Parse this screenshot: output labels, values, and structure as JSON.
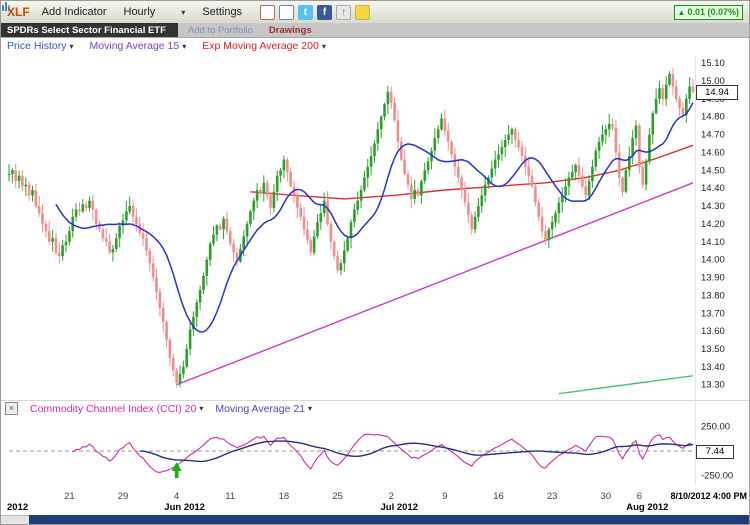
{
  "toolbar": {
    "symbol": "XLF",
    "add_indicator": "Add Indicator",
    "period": "Hourly",
    "settings": "Settings",
    "change": "0.01 (0.07%)"
  },
  "icons": {
    "caret": "▾",
    "up_arrow": "▲",
    "twitter_glyph": "t",
    "facebook_glyph": "f",
    "share_glyph": "↑",
    "close_glyph": "×"
  },
  "subbar": {
    "name": "SPDRs Select Sector Financial ETF",
    "add_to_portfolio": "Add to Portfolio",
    "drawings": "Drawings"
  },
  "legend": {
    "price_history": "Price History",
    "ma15": "Moving Average 15",
    "ema200": "Exp Moving Average 200"
  },
  "cci_header": {
    "cci": "Commodity Channel Index (CCI) 20",
    "ma": "Moving Average 21"
  },
  "price_tag": "14.94",
  "cci_value": "7.44",
  "timestamp": "8/10/2012 4:00 PM",
  "chart_data": {
    "type": "candlestick",
    "symbol": "XLF",
    "interval": "Hourly",
    "title": "SPDRs Select Sector Financial ETF - Hourly",
    "ylim": [
      13.22,
      15.14
    ],
    "price_ticks": [
      "15.10",
      "15.00",
      "14.90",
      "14.80",
      "14.70",
      "14.60",
      "14.50",
      "14.40",
      "14.30",
      "14.20",
      "14.10",
      "14.00",
      "13.90",
      "13.80",
      "13.70",
      "13.60",
      "13.50",
      "13.40",
      "13.30"
    ],
    "closes": [
      14.48,
      14.5,
      14.44,
      14.47,
      14.41,
      14.42,
      14.36,
      14.39,
      14.3,
      14.26,
      14.2,
      14.16,
      14.1,
      14.12,
      14.04,
      14.02,
      14.08,
      14.1,
      14.16,
      14.24,
      14.28,
      14.27,
      14.31,
      14.29,
      14.33,
      14.28,
      14.2,
      14.17,
      14.12,
      14.1,
      14.04,
      14.06,
      14.12,
      14.19,
      14.22,
      14.27,
      14.3,
      14.24,
      14.2,
      14.15,
      14.12,
      14.05,
      13.98,
      13.9,
      13.82,
      13.73,
      13.65,
      13.55,
      13.45,
      13.38,
      13.31,
      13.36,
      13.4,
      13.5,
      13.61,
      13.68,
      13.76,
      13.83,
      13.91,
      14.0,
      14.09,
      14.14,
      14.19,
      14.17,
      14.23,
      14.16,
      14.09,
      14.04,
      13.99,
      14.06,
      14.13,
      14.2,
      14.27,
      14.33,
      14.39,
      14.37,
      14.43,
      14.36,
      14.29,
      14.38,
      14.47,
      14.5,
      14.56,
      14.49,
      14.41,
      14.36,
      14.29,
      14.24,
      14.17,
      14.11,
      14.04,
      14.13,
      14.21,
      14.26,
      14.33,
      14.2,
      14.1,
      14.02,
      13.94,
      13.98,
      14.05,
      14.12,
      14.21,
      14.28,
      14.33,
      14.39,
      14.46,
      14.52,
      14.58,
      14.65,
      14.73,
      14.8,
      14.87,
      14.94,
      14.88,
      14.78,
      14.66,
      14.56,
      14.48,
      14.42,
      14.34,
      14.39,
      14.36,
      14.44,
      14.5,
      14.55,
      14.61,
      14.68,
      14.73,
      14.79,
      14.72,
      14.66,
      14.59,
      14.52,
      14.46,
      14.39,
      14.32,
      14.25,
      14.17,
      14.24,
      14.3,
      14.36,
      14.42,
      14.46,
      14.51,
      14.56,
      14.59,
      14.63,
      14.67,
      14.7,
      14.73,
      14.67,
      14.63,
      14.58,
      14.52,
      14.47,
      14.41,
      14.32,
      14.24,
      14.16,
      14.11,
      14.17,
      14.21,
      14.26,
      14.32,
      14.36,
      14.41,
      14.46,
      14.49,
      14.53,
      14.47,
      14.41,
      14.36,
      14.44,
      14.52,
      14.61,
      14.66,
      14.7,
      14.73,
      14.76,
      14.74,
      14.6,
      14.46,
      14.38,
      14.5,
      14.58,
      14.68,
      14.75,
      14.52,
      14.42,
      14.55,
      14.7,
      14.82,
      14.9,
      14.96,
      14.9,
      14.98,
      15.04,
      14.97,
      14.9,
      14.85,
      14.81,
      14.9,
      14.97,
      14.94
    ],
    "ma15_period": 15,
    "ema200_anchors": [
      [
        72,
        14.38
      ],
      [
        85,
        14.36
      ],
      [
        100,
        14.34
      ],
      [
        115,
        14.36
      ],
      [
        130,
        14.39
      ],
      [
        145,
        14.41
      ],
      [
        160,
        14.43
      ],
      [
        172,
        14.46
      ],
      [
        182,
        14.5
      ],
      [
        192,
        14.56
      ],
      [
        204,
        14.64
      ]
    ],
    "trendline": {
      "from": [
        50,
        13.3
      ],
      "to": [
        204,
        14.43
      ]
    },
    "trendline2": {
      "from": [
        164,
        13.25
      ],
      "to": [
        204,
        13.35
      ]
    },
    "x_labels": [
      {
        "i": 18,
        "t": "21"
      },
      {
        "i": 34,
        "t": "29"
      },
      {
        "i": 50,
        "t": "4",
        "sub": "Jun 2012"
      },
      {
        "i": 66,
        "t": "11"
      },
      {
        "i": 82,
        "t": "18"
      },
      {
        "i": 98,
        "t": "25"
      },
      {
        "i": 114,
        "t": "2",
        "sub": "Jul 2012"
      },
      {
        "i": 130,
        "t": "9"
      },
      {
        "i": 146,
        "t": "16"
      },
      {
        "i": 162,
        "t": "23"
      },
      {
        "i": 178,
        "t": "30"
      },
      {
        "i": 188,
        "t": "6",
        "sub": "Aug 2012"
      }
    ],
    "x_left_year": "2012",
    "cci": {
      "period": 20,
      "ma_period": 21,
      "ticks": [
        {
          "v": 250,
          "label": "250.00"
        },
        {
          "v": -250,
          "label": "-250.00"
        }
      ],
      "zero_dashed": true,
      "arrow_index": 50
    },
    "colors": {
      "up": "#2f9e2f",
      "down": "#ef8f8f",
      "ma15": "#2633cc",
      "ema200": "#e03030",
      "trend": "#c53fc5",
      "trend2": "#55bb77",
      "cci": "#cc2fa8",
      "cci_ma": "#26307f",
      "arrow": "#1faa1f"
    }
  }
}
